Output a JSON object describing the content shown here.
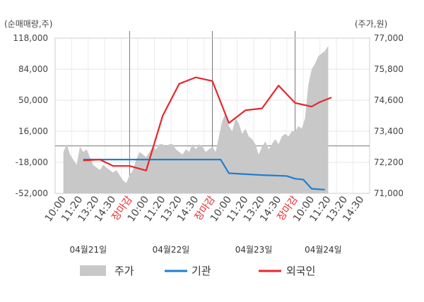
{
  "chart_data": {
    "type": "line",
    "left_axis_label": "(순매매량,주)",
    "right_axis_label": "(주가,원)",
    "left_ticks": [
      "118,000",
      "84,000",
      "50,000",
      "16,000",
      "-18,000",
      "-52,000"
    ],
    "left_tick_values": [
      118000,
      84000,
      50000,
      16000,
      -18000,
      -52000
    ],
    "right_ticks": [
      "77,000",
      "75,800",
      "74,600",
      "73,400",
      "72,200",
      "71,000"
    ],
    "right_tick_values": [
      77000,
      75800,
      74600,
      73400,
      72200,
      71000
    ],
    "left_ylim": [
      -52000,
      118000
    ],
    "right_ylim": [
      71000,
      77000
    ],
    "x_tick_labels": [
      "10:00",
      "11:20",
      "13:20",
      "14:30",
      "장마감",
      "10:00",
      "11:20",
      "13:20",
      "14:30",
      "장마감",
      "10:00",
      "11:20",
      "13:20",
      "14:30",
      "장마감",
      "10:00",
      "11:20",
      "13:20",
      "14:30"
    ],
    "x_tick_close_flags": [
      false,
      false,
      false,
      false,
      true,
      false,
      false,
      false,
      false,
      true,
      false,
      false,
      false,
      false,
      true,
      false,
      false,
      false,
      false
    ],
    "date_labels": [
      "04월21일",
      "04월22일",
      "04월23일",
      "04월24일"
    ],
    "day_separator_slots": [
      4,
      9,
      14
    ],
    "slot_count": 19,
    "zero_line_value": 0,
    "series": [
      {
        "name": "주가",
        "kind": "area",
        "axis": "right",
        "color": "#c8c8c8",
        "x": [
          0,
          0.2,
          0.4,
          0.6,
          0.8,
          1.0,
          1.2,
          1.4,
          1.6,
          1.8,
          2.0,
          2.2,
          2.4,
          2.6,
          2.8,
          3.0,
          3.2,
          3.4,
          3.6,
          3.8,
          4.0,
          4.2,
          4.4,
          4.6,
          4.8,
          5.0,
          5.2,
          5.4,
          5.6,
          5.8,
          6.0,
          6.2,
          6.4,
          6.6,
          6.8,
          7.0,
          7.2,
          7.4,
          7.6,
          7.8,
          8.0,
          8.2,
          8.4,
          8.6,
          8.8,
          9.0,
          9.2,
          9.4,
          9.6,
          9.8,
          10.0,
          10.2,
          10.4,
          10.6,
          10.8,
          11.0,
          11.2,
          11.4,
          11.6,
          11.8,
          12.0,
          12.2,
          12.4,
          12.6,
          12.8,
          13.0,
          13.2,
          13.4,
          13.6,
          13.8,
          14.0,
          14.2,
          14.4,
          14.6,
          14.8,
          15.0,
          15.2,
          15.4,
          15.6,
          15.8,
          16.0
        ],
        "values": [
          72600,
          72900,
          72500,
          72300,
          72100,
          72800,
          72600,
          72700,
          72400,
          72100,
          72000,
          71900,
          72100,
          72000,
          71900,
          71800,
          71900,
          71700,
          71500,
          71400,
          71700,
          71900,
          72300,
          72600,
          72500,
          72400,
          72600,
          72800,
          72700,
          72900,
          72900,
          72800,
          72900,
          72900,
          72700,
          72600,
          72500,
          72700,
          72600,
          72900,
          72700,
          72900,
          72800,
          72600,
          72700,
          72800,
          72600,
          73200,
          73800,
          74100,
          73600,
          73400,
          73900,
          73700,
          73300,
          73500,
          73200,
          73100,
          72900,
          72500,
          72800,
          73000,
          72700,
          72900,
          73100,
          72900,
          73200,
          73300,
          73200,
          73400,
          73400,
          73600,
          73500,
          73900,
          75200,
          75800,
          76000,
          76300,
          76400,
          76500,
          76700
        ]
      },
      {
        "name": "기관",
        "kind": "line",
        "axis": "left",
        "color": "#1f7fd1",
        "x": [
          1.2,
          3.0,
          5.2,
          8.2,
          9.5,
          10.0,
          12.0,
          13.5,
          14.0,
          14.5,
          15.0,
          15.8
        ],
        "values": [
          -15000,
          -15000,
          -15000,
          -15000,
          -15000,
          -30000,
          -32000,
          -33000,
          -36000,
          -37000,
          -47000,
          -48000
        ]
      },
      {
        "name": "외국인",
        "kind": "line",
        "axis": "left",
        "color": "#e8262d",
        "x": [
          1.2,
          2.2,
          3.0,
          4.0,
          5.0,
          6.0,
          7.0,
          8.0,
          9.0,
          10.0,
          11.0,
          12.0,
          13.0,
          14.0,
          15.0,
          15.5,
          16.2
        ],
        "values": [
          -16000,
          -15000,
          -22000,
          -22000,
          -27000,
          33000,
          68000,
          75000,
          71000,
          25000,
          39000,
          41000,
          66000,
          47000,
          43000,
          48000,
          53000
        ]
      }
    ],
    "legend": [
      "주가",
      "기관",
      "외국인"
    ]
  }
}
